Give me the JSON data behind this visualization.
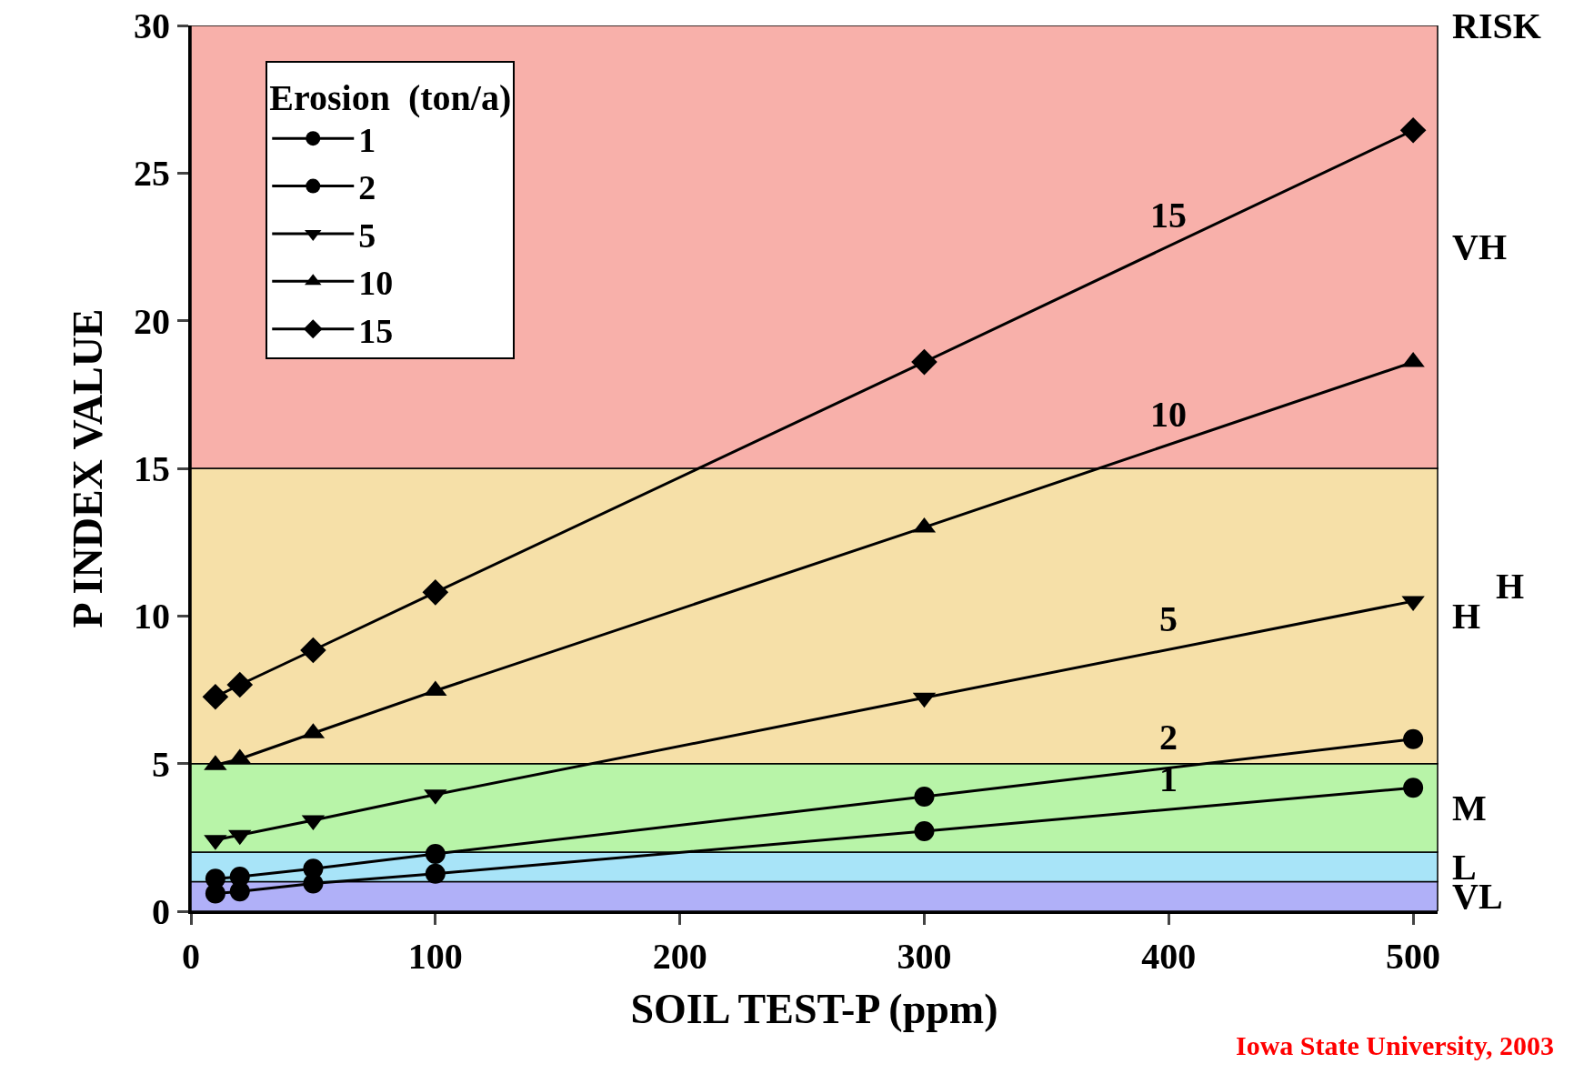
{
  "chart_data": {
    "type": "line",
    "xlabel": "SOIL TEST-P (ppm)",
    "ylabel": "P INDEX VALUE",
    "legend_title": "Erosion  (ton/a)",
    "x": [
      10,
      20,
      50,
      100,
      300,
      500
    ],
    "series": [
      {
        "name": "1",
        "color": "#000000",
        "marker": "circle",
        "values": [
          0.6,
          0.67,
          0.94,
          1.27,
          2.71,
          4.18
        ]
      },
      {
        "name": "2",
        "color": "#000000",
        "marker": "circle",
        "values": [
          1.1,
          1.17,
          1.44,
          1.94,
          3.88,
          5.83
        ]
      },
      {
        "name": "5",
        "color": "#000000",
        "marker": "triangle-down",
        "values": [
          2.41,
          2.58,
          3.08,
          3.95,
          7.23,
          10.5
        ]
      },
      {
        "name": "10",
        "color": "#000000",
        "marker": "triangle",
        "values": [
          4.95,
          5.16,
          6.03,
          7.47,
          13.0,
          18.6
        ]
      },
      {
        "name": "15",
        "color": "#000000",
        "marker": "diamond",
        "values": [
          7.26,
          7.67,
          8.84,
          10.8,
          18.6,
          26.45
        ]
      }
    ],
    "xlim": [
      0,
      510
    ],
    "xticks": [
      0,
      100,
      200,
      300,
      400,
      500
    ],
    "ylim": [
      0,
      30
    ],
    "yticks": [
      0,
      5,
      10,
      15,
      20,
      25,
      30
    ],
    "bands": [
      {
        "axis": "y",
        "from": 0,
        "to": 1,
        "label": "VL",
        "color": "#b0b0f8"
      },
      {
        "axis": "y",
        "from": 1,
        "to": 2,
        "label": "L",
        "color": "#a8e4f8"
      },
      {
        "axis": "y",
        "from": 2,
        "to": 5,
        "label": "M",
        "color": "#b8f4a8"
      },
      {
        "axis": "y",
        "from": 5,
        "to": 15,
        "label": "H",
        "color": "#f6e0a8"
      },
      {
        "axis": "y",
        "from": 15,
        "to": 30,
        "label": "VH",
        "color": "#f8b0aa"
      }
    ],
    "annotations": [
      "RISK",
      "H",
      "Iowa State University, 2003"
    ],
    "legend": "top left",
    "grid": false,
    "line_style": "solid"
  }
}
